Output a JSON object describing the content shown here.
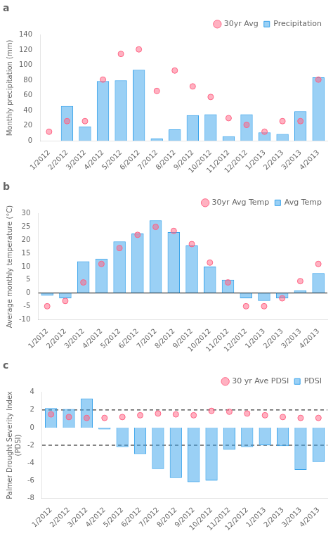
{
  "chart_data": [
    {
      "type": "bar",
      "title": "a",
      "categories": [
        "1/2012",
        "2/2012",
        "3/2012",
        "4/2012",
        "5/2012",
        "6/2012",
        "7/2012",
        "8/2012",
        "9/2012",
        "10/2012",
        "11/2012",
        "12/2012",
        "1/2013",
        "2/2013",
        "3/2013",
        "4/2013"
      ],
      "series": [
        {
          "name": "Precipitation",
          "type": "bar",
          "values": [
            0,
            46,
            19,
            79,
            80,
            94,
            3,
            15,
            34,
            35,
            6,
            35,
            11,
            9,
            39,
            84
          ]
        },
        {
          "name": "30yr Avg",
          "type": "scatter",
          "values": [
            12,
            26,
            26,
            81,
            115,
            121,
            66,
            93,
            72,
            58,
            30,
            21,
            12,
            26,
            26,
            81
          ]
        }
      ],
      "y_label": "Monthly precipitation (mm)",
      "ylim": [
        0,
        140
      ],
      "yticks": [
        0,
        20,
        40,
        60,
        80,
        100,
        120,
        140
      ],
      "grid": false,
      "legend": "upper right"
    },
    {
      "type": "bar",
      "title": "b",
      "categories": [
        "1/2012",
        "2/2012",
        "3/2012",
        "4/2012",
        "5/2012",
        "6/2012",
        "7/2012",
        "8/2012",
        "9/2012",
        "10/2012",
        "11/2012",
        "12/2012",
        "1/2013",
        "2/2013",
        "3/2013",
        "4/2013"
      ],
      "series": [
        {
          "name": "Avg Temp",
          "type": "bar",
          "values": [
            -1,
            -2,
            12,
            13,
            19.5,
            22.5,
            27.5,
            23,
            18,
            10,
            5,
            -2,
            -3,
            -2,
            1,
            7.5
          ]
        },
        {
          "name": "30yr Avg Temp",
          "type": "scatter",
          "values": [
            -5,
            -3,
            4,
            11,
            17,
            22,
            25,
            23.5,
            18.5,
            11.5,
            4,
            -5,
            -5,
            -2,
            4.5,
            11
          ]
        }
      ],
      "y_label": "Average monthly temperature (°C)",
      "ylim": [
        -10,
        30
      ],
      "yticks": [
        -10,
        -5,
        0,
        5,
        10,
        15,
        20,
        25,
        30
      ],
      "hlines": [
        {
          "value": 0,
          "line_style": "solid"
        }
      ],
      "grid": false,
      "legend": "upper right"
    },
    {
      "type": "bar",
      "title": "c",
      "categories": [
        "1/2012",
        "2/2012",
        "3/2012",
        "4/2012",
        "5/2012",
        "6/2012",
        "7/2012",
        "8/2012",
        "9/2012",
        "10/2012",
        "11/2012",
        "12/2012",
        "1/2013",
        "2/2013",
        "3/2013",
        "4/2013"
      ],
      "series": [
        {
          "name": "PDSI",
          "type": "bar",
          "values": [
            2.2,
            2.1,
            3.3,
            -0.2,
            -2.2,
            -3.0,
            -4.7,
            -5.7,
            -6.2,
            -6.0,
            -2.5,
            -2.2,
            -2.0,
            -2.1,
            -4.8,
            -3.9
          ]
        },
        {
          "name": "30 yr Ave PDSI",
          "type": "scatter",
          "values": [
            1.5,
            1.2,
            1.1,
            1.1,
            1.2,
            1.4,
            1.6,
            1.5,
            1.4,
            1.9,
            1.8,
            1.6,
            1.4,
            1.2,
            1.1,
            1.1
          ]
        }
      ],
      "y_label": "Palmer Drought Severity Index\n(PDSI)",
      "ylim": [
        -8,
        4
      ],
      "yticks": [
        -8,
        -6,
        -4,
        -2,
        0,
        2,
        4
      ],
      "hlines": [
        {
          "value": 2.0,
          "line_style": "dashed"
        },
        {
          "value": -2.0,
          "line_style": "dashed"
        }
      ],
      "grid": false,
      "legend": "upper right"
    }
  ]
}
